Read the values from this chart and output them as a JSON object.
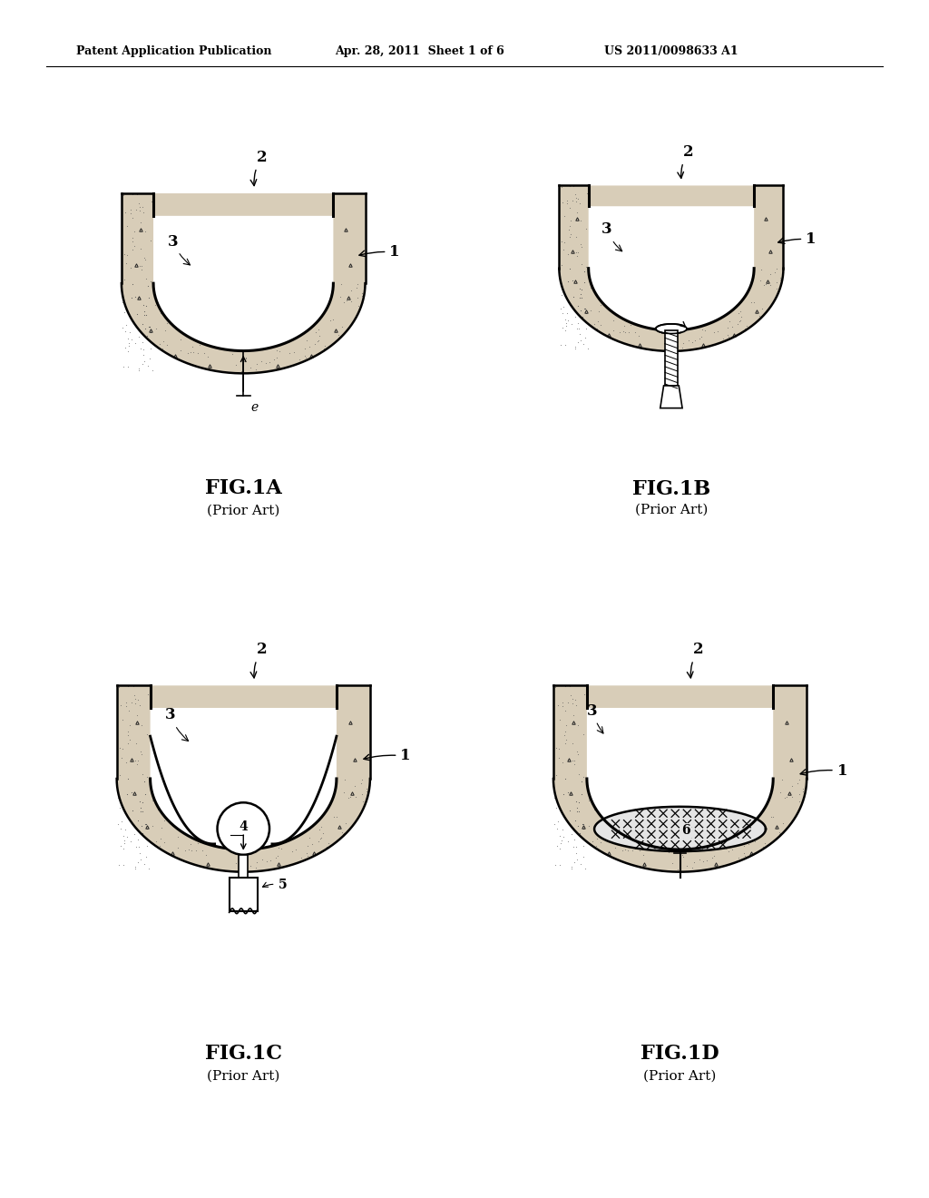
{
  "bg_color": "#ffffff",
  "header_left": "Patent Application Publication",
  "header_mid": "Apr. 28, 2011  Sheet 1 of 6",
  "header_right": "US 2011/0098633 A1",
  "fig1a_title": "FIG.1A",
  "fig1b_title": "FIG.1B",
  "fig1c_title": "FIG.1C",
  "fig1d_title": "FIG.1D",
  "prior_art": "(Prior Art)",
  "bone_color": "#d8cdb8",
  "inner_color": "#ffffff",
  "line_color": "#000000"
}
